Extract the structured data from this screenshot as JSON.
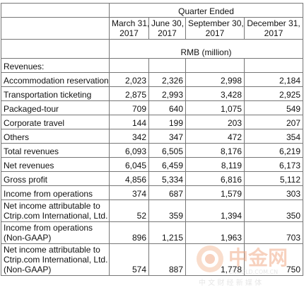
{
  "header": {
    "quarter_ended": "Quarter Ended",
    "columns": [
      {
        "line1": "March 31,",
        "line2": "2017"
      },
      {
        "line1": "June 30,",
        "line2": "2017"
      },
      {
        "line1": "September 30,",
        "line2": "2017"
      },
      {
        "line1": "December 31,",
        "line2": "2017"
      }
    ],
    "unit": "RMB (million)"
  },
  "section": "Revenues:",
  "rows": [
    {
      "label": "Accommodation reservation",
      "values": [
        "2,023",
        "2,326",
        "2,998",
        "2,184"
      ]
    },
    {
      "label": "Transportation ticketing",
      "values": [
        "2,875",
        "2,993",
        "3,428",
        "2,925"
      ]
    },
    {
      "label": "Packaged-tour",
      "values": [
        "709",
        "640",
        "1,075",
        "549"
      ]
    },
    {
      "label": "Corporate travel",
      "values": [
        "144",
        "199",
        "203",
        "207"
      ]
    },
    {
      "label": "Others",
      "values": [
        "342",
        "347",
        "472",
        "354"
      ]
    },
    {
      "label": "Total revenues",
      "values": [
        "6,093",
        "6,505",
        "8,176",
        "6,219"
      ]
    },
    {
      "label": "Net revenues",
      "values": [
        "6,045",
        "6,459",
        "8,119",
        "6,173"
      ]
    },
    {
      "label": "Gross profit",
      "values": [
        "4,856",
        "5,334",
        "6,816",
        "5,112"
      ]
    },
    {
      "label": "Income from operations",
      "values": [
        "374",
        "687",
        "1,579",
        "303"
      ]
    },
    {
      "label_lines": [
        "Net income attributable to",
        "Ctrip.com International, Ltd."
      ],
      "values": [
        "52",
        "359",
        "1,394",
        "350"
      ]
    },
    {
      "label_lines": [
        "Income from operations",
        "(Non-GAAP)"
      ],
      "values": [
        "896",
        "1,215",
        "1,963",
        "703"
      ]
    },
    {
      "label_lines": [
        "Net income attributable to",
        "Ctrip.com International, Ltd.",
        "(Non-GAAP)"
      ],
      "values": [
        "574",
        "887",
        "1,778",
        "750"
      ]
    }
  ],
  "watermark": {
    "brand": "中金网",
    "url": "CNGOLD.COM.CN",
    "tagline": "中 文 财 经 新 媒 体"
  }
}
